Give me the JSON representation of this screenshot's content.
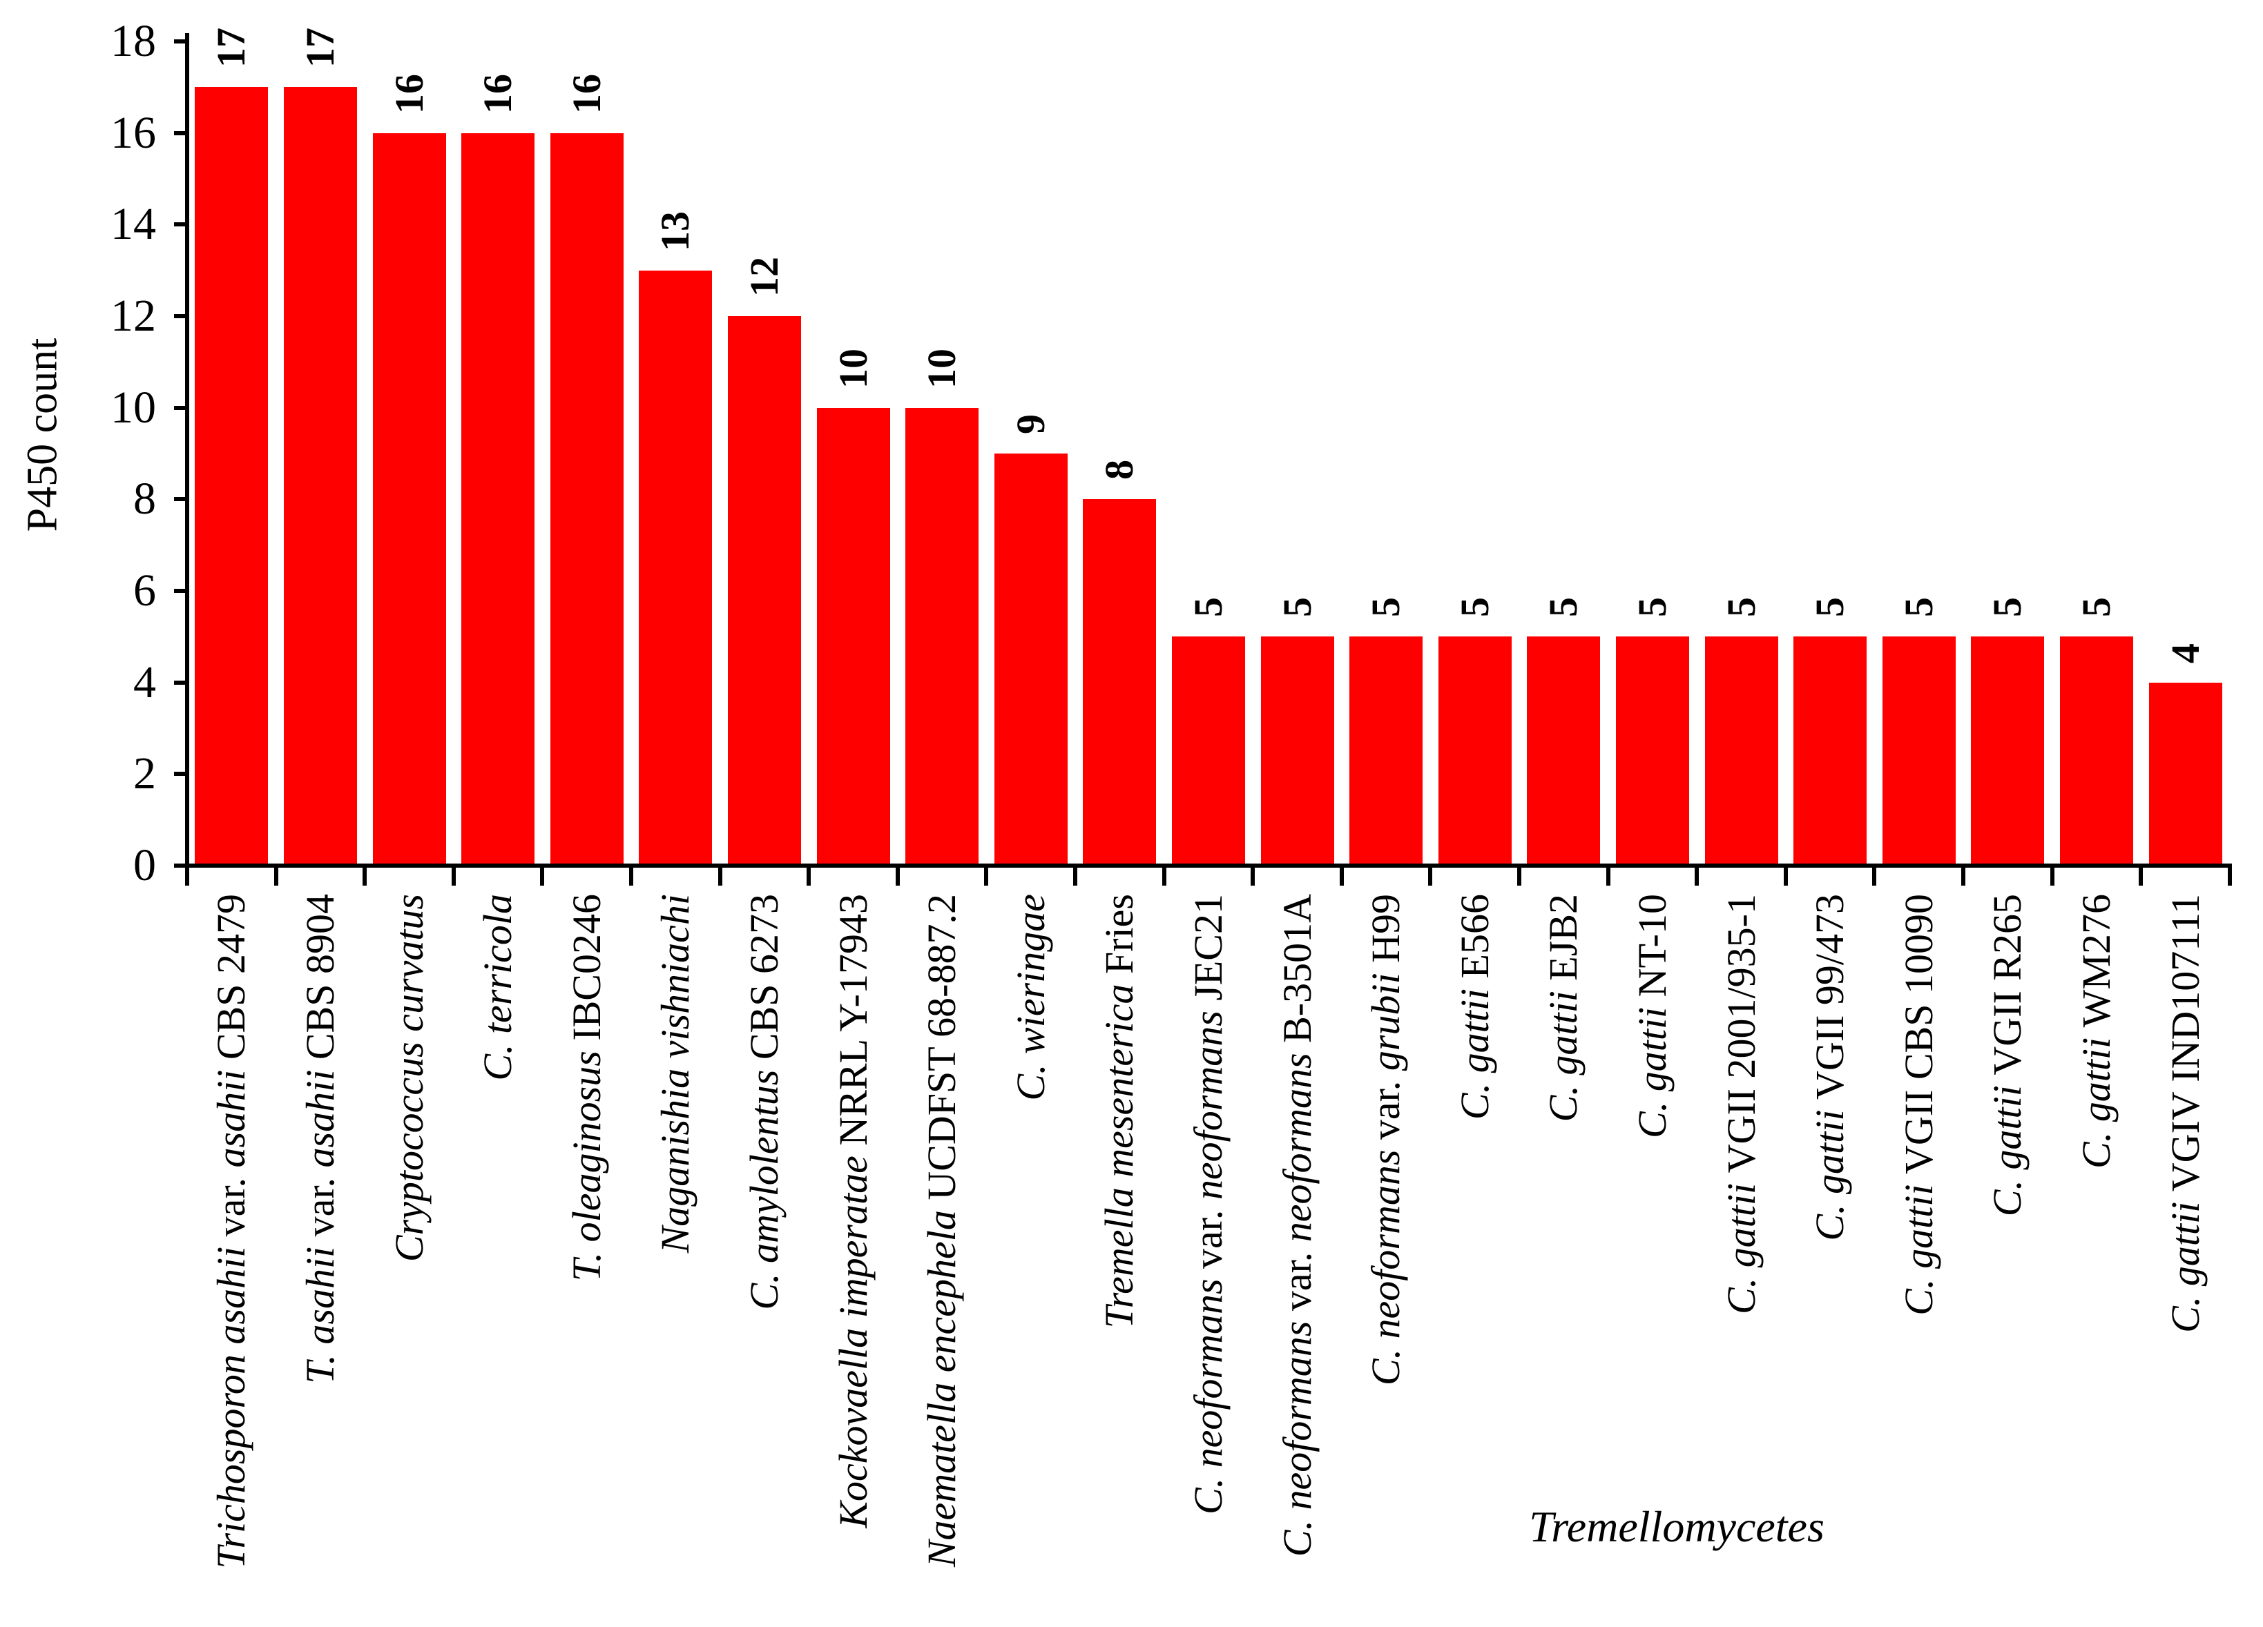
{
  "figure": {
    "background": "#ffffff",
    "text_color": "#000000"
  },
  "chart_data": {
    "type": "bar",
    "title": "",
    "xlabel": "Tremellomycetes",
    "ylabel": "P450 count",
    "ylim": [
      0,
      18
    ],
    "ytick_interval": 2,
    "yticks": [
      0,
      2,
      4,
      6,
      8,
      10,
      12,
      14,
      16,
      18
    ],
    "grid": false,
    "legend": "none",
    "bar_color": "#ff0000",
    "axis_color": "#000000",
    "value_labels_shown": true,
    "value_label_rotation": -90,
    "category_label_rotation": -90,
    "values": [
      17,
      17,
      16,
      16,
      16,
      13,
      12,
      10,
      10,
      9,
      8,
      5,
      5,
      5,
      5,
      5,
      5,
      5,
      5,
      5,
      5,
      5,
      4
    ],
    "categories": [
      {
        "label": "Trichosporon asahii var. asahii CBS 2479",
        "value": 17,
        "parts": [
          {
            "text": "Trichosporon asahii ",
            "italic": true
          },
          {
            "text": "var. ",
            "italic": false
          },
          {
            "text": "asahii ",
            "italic": true
          },
          {
            "text": "CBS 2479",
            "italic": false
          }
        ]
      },
      {
        "label": "T. asahii var. asahii CBS 8904",
        "value": 17,
        "parts": [
          {
            "text": "T. asahii ",
            "italic": true
          },
          {
            "text": "var. ",
            "italic": false
          },
          {
            "text": "asahii ",
            "italic": true
          },
          {
            "text": "CBS 8904",
            "italic": false
          }
        ]
      },
      {
        "label": "Cryptococcus curvatus",
        "value": 16,
        "parts": [
          {
            "text": "Cryptococcus curvatus",
            "italic": true
          }
        ]
      },
      {
        "label": "C. terricola",
        "value": 16,
        "parts": [
          {
            "text": "C. terricola",
            "italic": true
          }
        ]
      },
      {
        "label": "T. oleaginosus IBC0246",
        "value": 16,
        "parts": [
          {
            "text": "T. oleaginosus ",
            "italic": true
          },
          {
            "text": "IBC0246",
            "italic": false
          }
        ]
      },
      {
        "label": "Naganishia vishniachi",
        "value": 13,
        "parts": [
          {
            "text": "Naganishia vishniachi",
            "italic": true
          }
        ]
      },
      {
        "label": "C. amylolentus CBS 6273",
        "value": 12,
        "parts": [
          {
            "text": "C. amylolentus ",
            "italic": true
          },
          {
            "text": "CBS 6273",
            "italic": false
          }
        ]
      },
      {
        "label": "Kockovaella imperatae NRRL Y-17943",
        "value": 10,
        "parts": [
          {
            "text": "Kockovaella imperatae ",
            "italic": true
          },
          {
            "text": "NRRL Y-17943",
            "italic": false
          }
        ]
      },
      {
        "label": "Naematella encephela UCDFST 68-887.2",
        "value": 10,
        "parts": [
          {
            "text": "Naematella encephela ",
            "italic": true
          },
          {
            "text": "UCDFST 68-887.2",
            "italic": false
          }
        ]
      },
      {
        "label": "C. wieringae",
        "value": 9,
        "parts": [
          {
            "text": "C. wieringae",
            "italic": true
          }
        ]
      },
      {
        "label": "Tremella mesenterica Fries",
        "value": 8,
        "parts": [
          {
            "text": "Tremella mesenterica ",
            "italic": true
          },
          {
            "text": "Fries",
            "italic": false
          }
        ]
      },
      {
        "label": "C. neoformans var. neoformans JEC21",
        "value": 5,
        "parts": [
          {
            "text": "C. neoformans ",
            "italic": true
          },
          {
            "text": "var. ",
            "italic": false
          },
          {
            "text": "neoformans ",
            "italic": true
          },
          {
            "text": "JEC21",
            "italic": false
          }
        ]
      },
      {
        "label": "C. neoformans var. neoformans B-3501A",
        "value": 5,
        "parts": [
          {
            "text": "C. neoformans ",
            "italic": true
          },
          {
            "text": "var. ",
            "italic": false
          },
          {
            "text": "neoformans ",
            "italic": true
          },
          {
            "text": "B-3501A",
            "italic": false
          }
        ]
      },
      {
        "label": "C. neoformans var. grubii H99",
        "value": 5,
        "parts": [
          {
            "text": "C. neoformans ",
            "italic": true
          },
          {
            "text": "var. ",
            "italic": false
          },
          {
            "text": "grubii ",
            "italic": true
          },
          {
            "text": "H99",
            "italic": false
          }
        ]
      },
      {
        "label": "C. gattii E566",
        "value": 5,
        "parts": [
          {
            "text": "C. gattii ",
            "italic": true
          },
          {
            "text": "E566",
            "italic": false
          }
        ]
      },
      {
        "label": "C. gattii EJB2",
        "value": 5,
        "parts": [
          {
            "text": "C. gattii ",
            "italic": true
          },
          {
            "text": "EJB2",
            "italic": false
          }
        ]
      },
      {
        "label": "C. gattii NT-10",
        "value": 5,
        "parts": [
          {
            "text": "C. gattii ",
            "italic": true
          },
          {
            "text": "NT-10",
            "italic": false
          }
        ]
      },
      {
        "label": "C. gattii VGII 2001/935-1",
        "value": 5,
        "parts": [
          {
            "text": "C. gattii ",
            "italic": true
          },
          {
            "text": "VGII 2001/935-1",
            "italic": false
          }
        ]
      },
      {
        "label": "C. gattii VGII 99/473",
        "value": 5,
        "parts": [
          {
            "text": "C. gattii ",
            "italic": true
          },
          {
            "text": "VGII 99/473",
            "italic": false
          }
        ]
      },
      {
        "label": "C. gattii VGII CBS 10090",
        "value": 5,
        "parts": [
          {
            "text": "C. gattii ",
            "italic": true
          },
          {
            "text": "VGII CBS 10090",
            "italic": false
          }
        ]
      },
      {
        "label": "C. gattii VGII R265",
        "value": 5,
        "parts": [
          {
            "text": "C. gattii ",
            "italic": true
          },
          {
            "text": "VGII R265",
            "italic": false
          }
        ]
      },
      {
        "label": "C. gattii WM276",
        "value": 5,
        "parts": [
          {
            "text": "C. gattii ",
            "italic": true
          },
          {
            "text": "WM276",
            "italic": false
          }
        ]
      },
      {
        "label": "C. gattii VGIV IND107111",
        "value": 4,
        "parts": [
          {
            "text": "C. gattii ",
            "italic": true
          },
          {
            "text": "VGIV IND107111",
            "italic": false
          }
        ]
      }
    ]
  }
}
